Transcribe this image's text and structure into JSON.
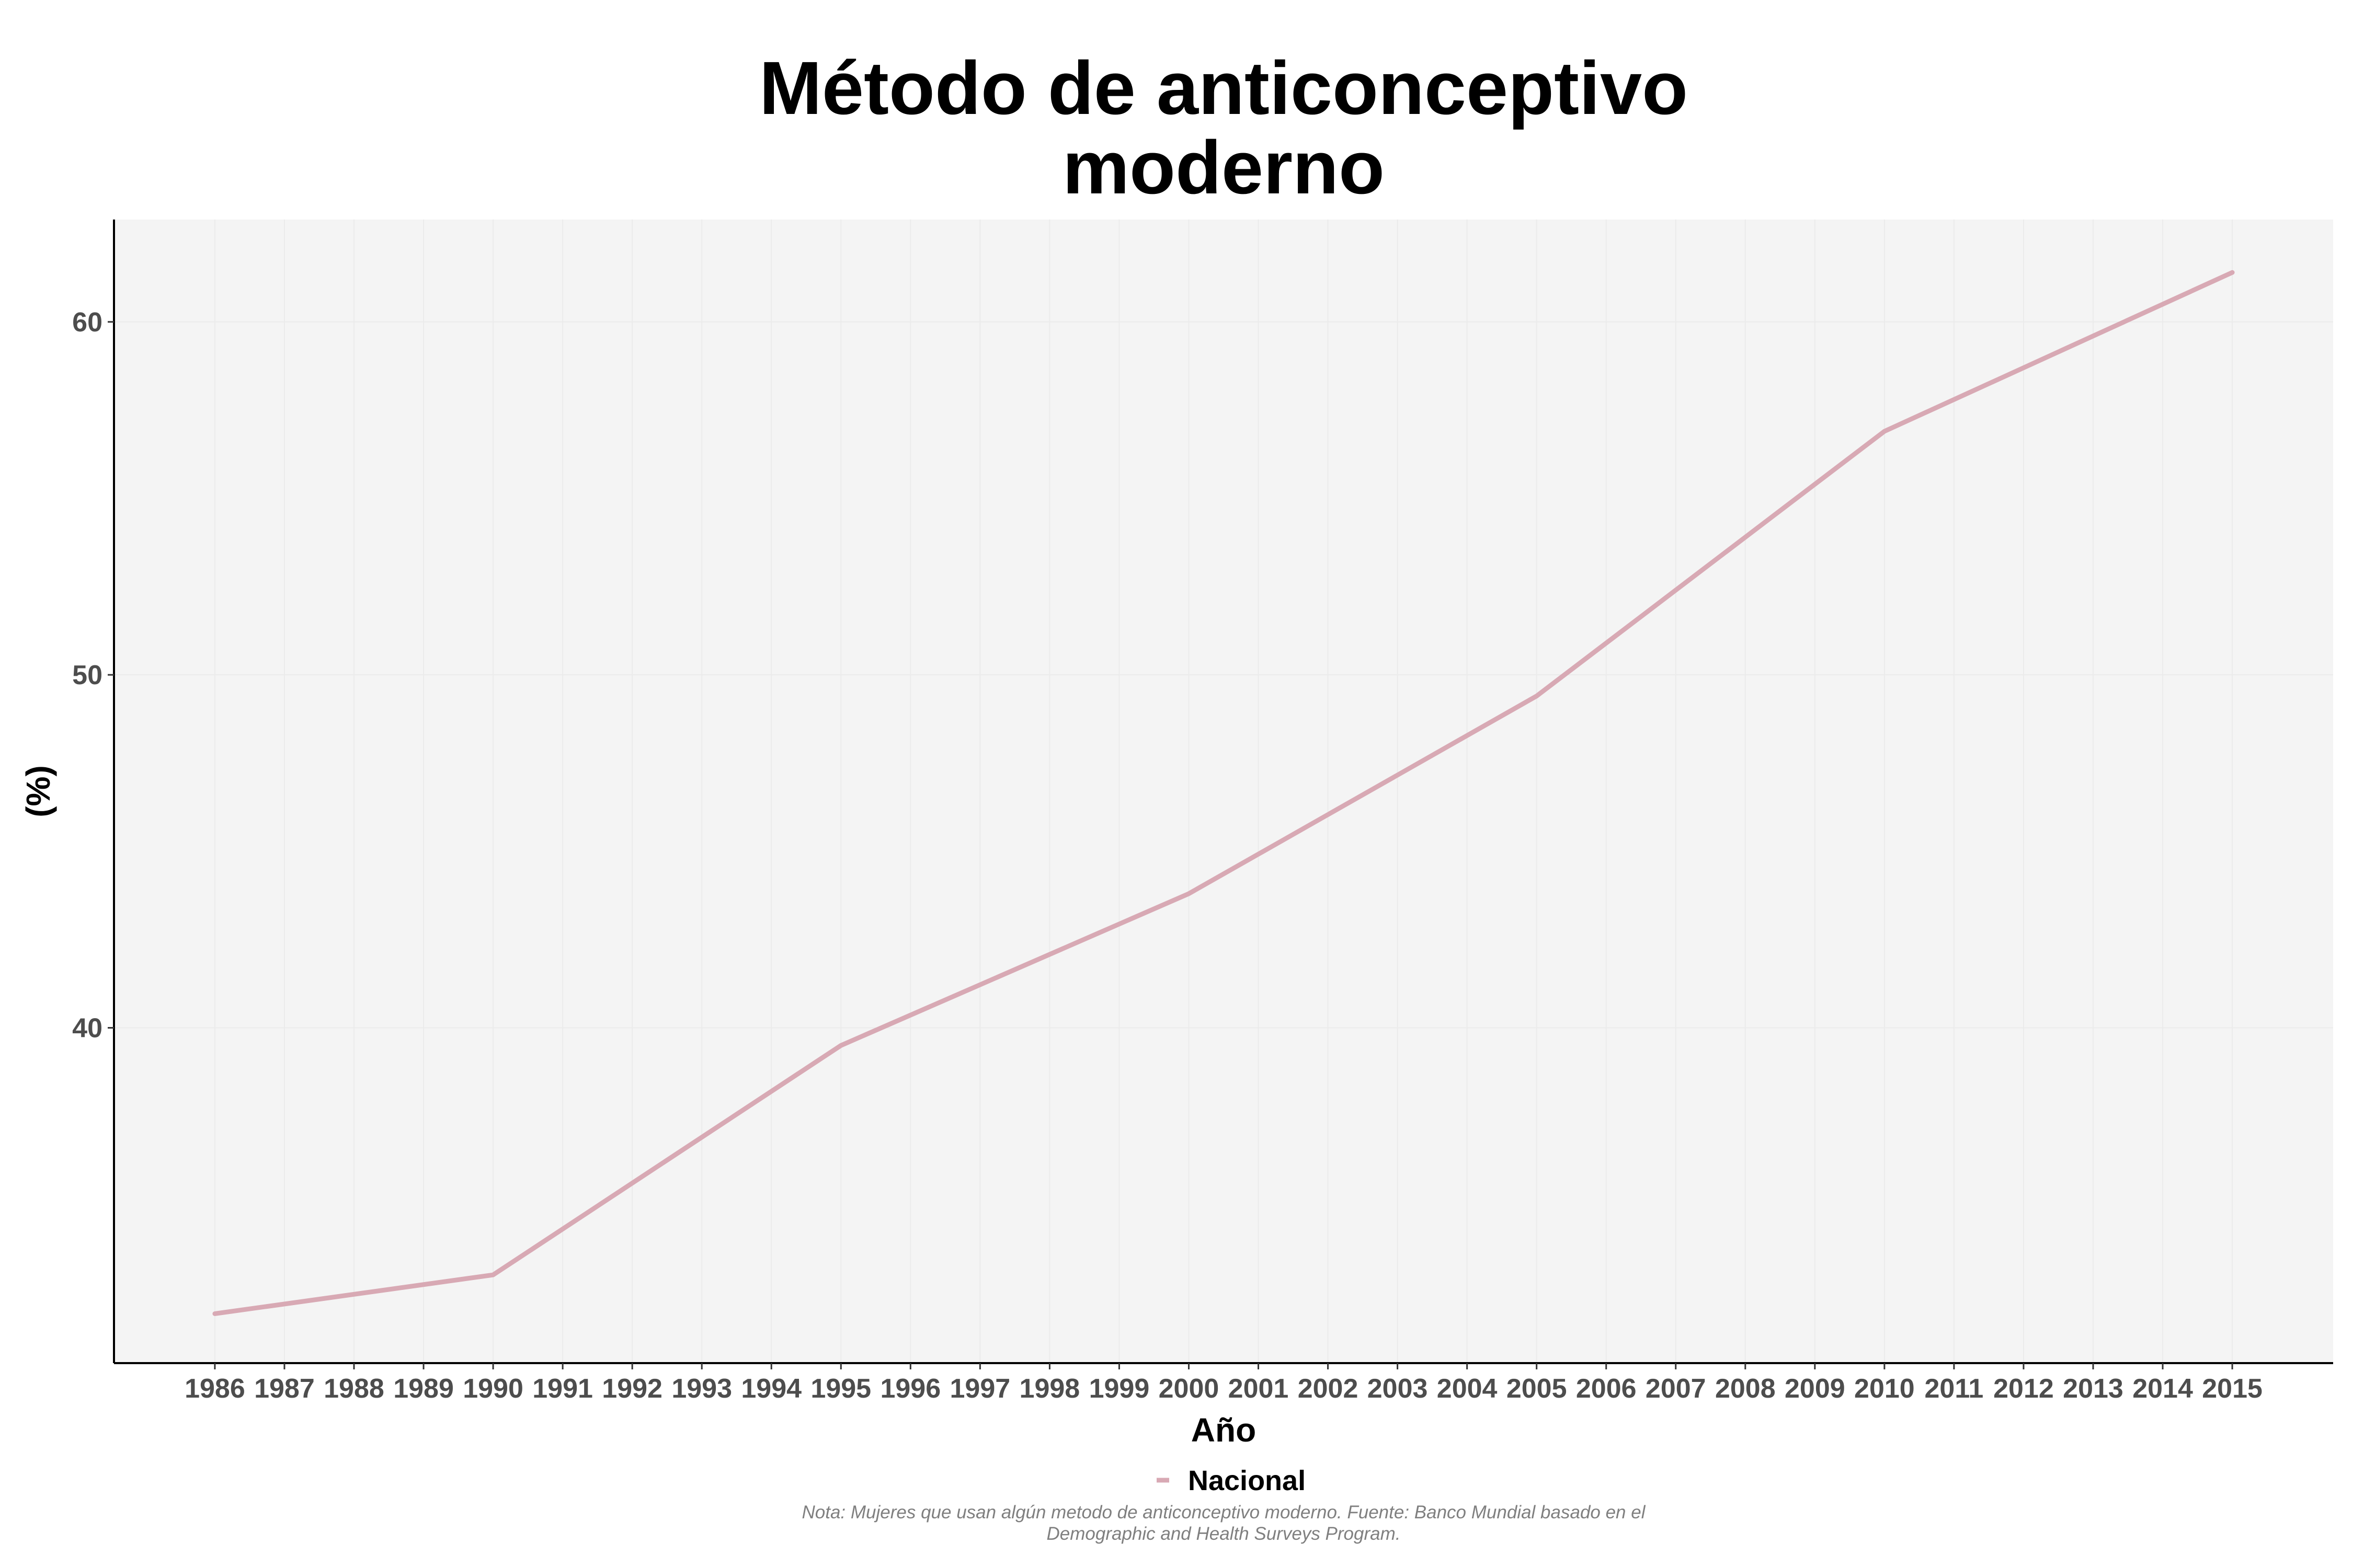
{
  "chart_data": {
    "type": "line",
    "title_lines": [
      "Método de anticonceptivo",
      "moderno"
    ],
    "xlabel": "Año",
    "ylabel": "(%)",
    "x": [
      1986,
      1987,
      1988,
      1989,
      1990,
      1991,
      1992,
      1993,
      1994,
      1995,
      1996,
      1997,
      1998,
      1999,
      2000,
      2001,
      2002,
      2003,
      2004,
      2005,
      2006,
      2007,
      2008,
      2009,
      2010,
      2011,
      2012,
      2013,
      2014,
      2015
    ],
    "x_tick_labels": [
      "1986",
      "1987",
      "1988",
      "1989",
      "1990",
      "1991",
      "1992",
      "1993",
      "1994",
      "1995",
      "1996",
      "1997",
      "1998",
      "1999",
      "2000",
      "2001",
      "2002",
      "2003",
      "2004",
      "2005",
      "2006",
      "2007",
      "2008",
      "2009",
      "2010",
      "2011",
      "2012",
      "2013",
      "2014",
      "2015"
    ],
    "y_ticks": [
      40,
      50,
      60
    ],
    "y_tick_labels": [
      "40",
      "50",
      "60"
    ],
    "ylim": [
      30.5,
      62.9
    ],
    "xlim": [
      1984.55,
      2016.45
    ],
    "grid": true,
    "legend_position": "bottom",
    "series": [
      {
        "name": "Nacional",
        "color": "#d8a9b4",
        "points": [
          {
            "x": 1986,
            "y": 31.9
          },
          {
            "x": 1990,
            "y": 33.0
          },
          {
            "x": 1995,
            "y": 39.5
          },
          {
            "x": 2000,
            "y": 43.8
          },
          {
            "x": 2005,
            "y": 49.4
          },
          {
            "x": 2010,
            "y": 56.9
          },
          {
            "x": 2015,
            "y": 61.4
          }
        ]
      }
    ],
    "caption_lines": [
      "Nota: Mujeres que usan algún metodo de anticonceptivo moderno. Fuente: Banco Mundial basado en el",
      "Demographic and Health Surveys Program."
    ],
    "colors": {
      "panel_background": "#f4f4f4",
      "grid": "#ebebeb",
      "axis_line": "#000000"
    }
  }
}
